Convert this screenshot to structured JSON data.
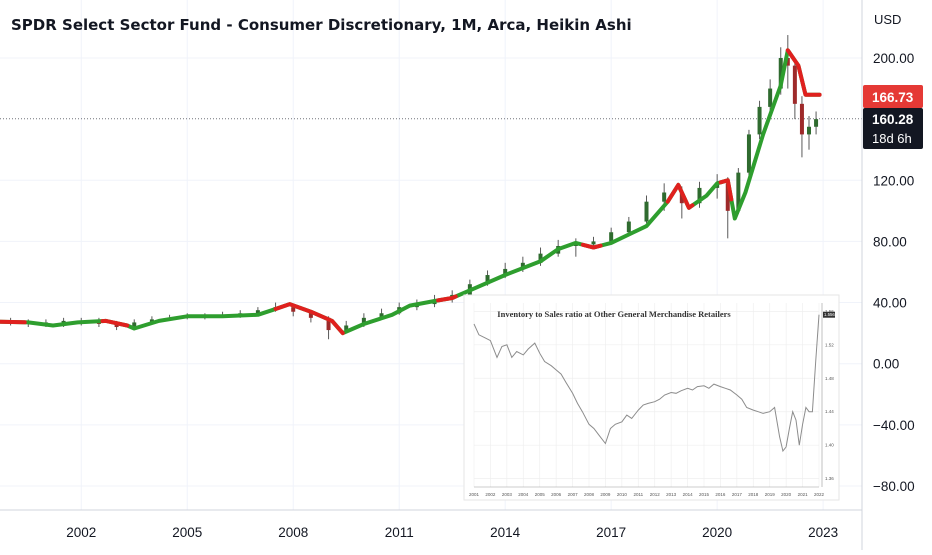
{
  "chart_data": [
    {
      "type": "candlestick",
      "title": "SPDR Select Sector Fund - Consumer Discretionary, 1M, Arca, Heikin Ashi",
      "currency": "USD",
      "yaxis_ticks": [
        "200.00",
        "120.00",
        "80.00",
        "40.00",
        "0.00",
        "−40.00",
        "−80.00"
      ],
      "ytick_values": [
        200,
        120,
        80,
        40,
        0,
        -40,
        -80
      ],
      "xaxis_ticks": [
        "2002",
        "2005",
        "2008",
        "2011",
        "2014",
        "2017",
        "2020",
        "2023"
      ],
      "xtick_values": [
        2002,
        2005,
        2008,
        2011,
        2014,
        2017,
        2020,
        2023
      ],
      "y_range": [
        -90,
        225
      ],
      "x_range": [
        1999.7,
        2024.1
      ],
      "price_labels": [
        {
          "text": "166.73",
          "value": 166.73,
          "color": "#e53935"
        },
        {
          "text": "160.28",
          "value": 160.28,
          "color": "#131722"
        },
        {
          "text": "18d 6h",
          "color": "#131722"
        }
      ],
      "dotted_price_line": 160.28,
      "trend_line": {
        "up_color": "#2e9e2e",
        "down_color": "#e0201e",
        "points": [
          [
            1999.7,
            27.5
          ],
          [
            2000.5,
            27
          ],
          [
            2001.2,
            25
          ],
          [
            2001.9,
            27
          ],
          [
            2002.7,
            28
          ],
          [
            2003.3,
            25
          ],
          [
            2003.5,
            23
          ],
          [
            2004.2,
            28
          ],
          [
            2005.0,
            31
          ],
          [
            2006.0,
            31
          ],
          [
            2007.0,
            32
          ],
          [
            2007.4,
            35
          ],
          [
            2007.9,
            39
          ],
          [
            2008.5,
            34
          ],
          [
            2009.1,
            28
          ],
          [
            2009.4,
            20
          ],
          [
            2010.0,
            26
          ],
          [
            2010.8,
            32
          ],
          [
            2011.3,
            38
          ],
          [
            2012.0,
            41
          ],
          [
            2012.5,
            43
          ],
          [
            2013.2,
            50
          ],
          [
            2014.0,
            58
          ],
          [
            2015.0,
            67
          ],
          [
            2015.5,
            75
          ],
          [
            2016.0,
            79
          ],
          [
            2016.5,
            76
          ],
          [
            2017.0,
            79
          ],
          [
            2018.0,
            90
          ],
          [
            2018.6,
            106
          ],
          [
            2018.9,
            117
          ],
          [
            2019.2,
            102
          ],
          [
            2019.7,
            110
          ],
          [
            2020.0,
            118
          ],
          [
            2020.3,
            120
          ],
          [
            2020.5,
            95
          ],
          [
            2020.8,
            112
          ],
          [
            2021.3,
            150
          ],
          [
            2021.8,
            182
          ],
          [
            2022.0,
            205
          ],
          [
            2022.3,
            195
          ],
          [
            2022.5,
            176
          ],
          [
            2022.9,
            176
          ]
        ],
        "down_segments": [
          [
            1999.7,
            2000.4
          ],
          [
            2002.6,
            2003.3
          ],
          [
            2007.5,
            2009.4
          ],
          [
            2012.1,
            2012.6
          ],
          [
            2016.2,
            2016.7
          ],
          [
            2018.6,
            2019.3
          ],
          [
            2020.1,
            2020.4
          ],
          [
            2022.0,
            2022.9
          ]
        ]
      },
      "candles": [
        {
          "x": 2000.0,
          "o": 28,
          "c": 27,
          "h": 30,
          "l": 25
        },
        {
          "x": 2000.5,
          "o": 27,
          "c": 26,
          "h": 29,
          "l": 24
        },
        {
          "x": 2001.0,
          "o": 26,
          "c": 27,
          "h": 29,
          "l": 24
        },
        {
          "x": 2001.5,
          "o": 26,
          "c": 28,
          "h": 30,
          "l": 24
        },
        {
          "x": 2002.0,
          "o": 27,
          "c": 28,
          "h": 30,
          "l": 25
        },
        {
          "x": 2002.5,
          "o": 28,
          "c": 26,
          "h": 30,
          "l": 24
        },
        {
          "x": 2003.0,
          "o": 26,
          "c": 24,
          "h": 28,
          "l": 22
        },
        {
          "x": 2003.5,
          "o": 24,
          "c": 27,
          "h": 29,
          "l": 22
        },
        {
          "x": 2004.0,
          "o": 27,
          "c": 29,
          "h": 31,
          "l": 26
        },
        {
          "x": 2004.5,
          "o": 29,
          "c": 30,
          "h": 32,
          "l": 28
        },
        {
          "x": 2005.0,
          "o": 30,
          "c": 31,
          "h": 33,
          "l": 29
        },
        {
          "x": 2005.5,
          "o": 31,
          "c": 31,
          "h": 33,
          "l": 29
        },
        {
          "x": 2006.0,
          "o": 31,
          "c": 32,
          "h": 34,
          "l": 30
        },
        {
          "x": 2006.5,
          "o": 31,
          "c": 33,
          "h": 35,
          "l": 30
        },
        {
          "x": 2007.0,
          "o": 33,
          "c": 35,
          "h": 37,
          "l": 32
        },
        {
          "x": 2007.5,
          "o": 35,
          "c": 37,
          "h": 40,
          "l": 34
        },
        {
          "x": 2008.0,
          "o": 37,
          "c": 34,
          "h": 38,
          "l": 31
        },
        {
          "x": 2008.5,
          "o": 34,
          "c": 30,
          "h": 35,
          "l": 27
        },
        {
          "x": 2009.0,
          "o": 30,
          "c": 22,
          "h": 31,
          "l": 16
        },
        {
          "x": 2009.5,
          "o": 22,
          "c": 25,
          "h": 28,
          "l": 20
        },
        {
          "x": 2010.0,
          "o": 25,
          "c": 30,
          "h": 33,
          "l": 24
        },
        {
          "x": 2010.5,
          "o": 30,
          "c": 33,
          "h": 36,
          "l": 29
        },
        {
          "x": 2011.0,
          "o": 33,
          "c": 37,
          "h": 40,
          "l": 32
        },
        {
          "x": 2011.5,
          "o": 37,
          "c": 39,
          "h": 42,
          "l": 35
        },
        {
          "x": 2012.0,
          "o": 39,
          "c": 42,
          "h": 45,
          "l": 37
        },
        {
          "x": 2012.5,
          "o": 42,
          "c": 45,
          "h": 48,
          "l": 40
        },
        {
          "x": 2013.0,
          "o": 45,
          "c": 52,
          "h": 55,
          "l": 44
        },
        {
          "x": 2013.5,
          "o": 52,
          "c": 58,
          "h": 61,
          "l": 51
        },
        {
          "x": 2014.0,
          "o": 58,
          "c": 62,
          "h": 66,
          "l": 56
        },
        {
          "x": 2014.5,
          "o": 62,
          "c": 66,
          "h": 70,
          "l": 60
        },
        {
          "x": 2015.0,
          "o": 66,
          "c": 72,
          "h": 76,
          "l": 64
        },
        {
          "x": 2015.5,
          "o": 72,
          "c": 77,
          "h": 81,
          "l": 70
        },
        {
          "x": 2016.0,
          "o": 77,
          "c": 78,
          "h": 82,
          "l": 70
        },
        {
          "x": 2016.5,
          "o": 78,
          "c": 80,
          "h": 83,
          "l": 75
        },
        {
          "x": 2017.0,
          "o": 80,
          "c": 86,
          "h": 89,
          "l": 79
        },
        {
          "x": 2017.5,
          "o": 86,
          "c": 93,
          "h": 96,
          "l": 85
        },
        {
          "x": 2018.0,
          "o": 93,
          "c": 106,
          "h": 110,
          "l": 92
        },
        {
          "x": 2018.5,
          "o": 106,
          "c": 112,
          "h": 118,
          "l": 100
        },
        {
          "x": 2019.0,
          "o": 112,
          "c": 105,
          "h": 116,
          "l": 95
        },
        {
          "x": 2019.5,
          "o": 105,
          "c": 115,
          "h": 119,
          "l": 102
        },
        {
          "x": 2020.0,
          "o": 115,
          "c": 118,
          "h": 124,
          "l": 108
        },
        {
          "x": 2020.3,
          "o": 118,
          "c": 100,
          "h": 122,
          "l": 82
        },
        {
          "x": 2020.6,
          "o": 100,
          "c": 125,
          "h": 128,
          "l": 98
        },
        {
          "x": 2020.9,
          "o": 125,
          "c": 150,
          "h": 153,
          "l": 123
        },
        {
          "x": 2021.2,
          "o": 150,
          "c": 168,
          "h": 172,
          "l": 147
        },
        {
          "x": 2021.5,
          "o": 168,
          "c": 180,
          "h": 186,
          "l": 165
        },
        {
          "x": 2021.8,
          "o": 180,
          "c": 200,
          "h": 207,
          "l": 176
        },
        {
          "x": 2022.0,
          "o": 200,
          "c": 195,
          "h": 215,
          "l": 180
        },
        {
          "x": 2022.2,
          "o": 195,
          "c": 170,
          "h": 200,
          "l": 160
        },
        {
          "x": 2022.4,
          "o": 170,
          "c": 150,
          "h": 175,
          "l": 135
        },
        {
          "x": 2022.6,
          "o": 150,
          "c": 155,
          "h": 162,
          "l": 140
        },
        {
          "x": 2022.8,
          "o": 155,
          "c": 160,
          "h": 165,
          "l": 150
        }
      ]
    },
    {
      "type": "line",
      "title": "Inventory to Sales ratio at Other General Merchandise Retailers",
      "line_color": "#8c8c8c",
      "x_range": [
        2001,
        2022
      ],
      "y_range": [
        1.35,
        1.57
      ],
      "x_ticks": [
        "2001",
        "2002",
        "2003",
        "2004",
        "2005",
        "2006",
        "2007",
        "2008",
        "2009",
        "2010",
        "2011",
        "2012",
        "2013",
        "2014",
        "2015",
        "2016",
        "2017",
        "2018",
        "2019",
        "2020",
        "2021",
        "2022"
      ],
      "y_ticks": [
        "1.56",
        "1.52",
        "1.48",
        "1.44",
        "1.40",
        "1.36"
      ],
      "ytick_values": [
        1.56,
        1.52,
        1.48,
        1.44,
        1.4,
        1.36
      ],
      "last_value_label": "1.5566",
      "x": [
        2001.0,
        2001.3,
        2001.7,
        2002.0,
        2002.4,
        2002.7,
        2003.0,
        2003.3,
        2003.6,
        2004.0,
        2004.3,
        2004.7,
        2005.0,
        2005.3,
        2005.7,
        2006.0,
        2006.3,
        2006.6,
        2007.0,
        2007.3,
        2007.6,
        2008.0,
        2008.3,
        2008.6,
        2009.0,
        2009.3,
        2009.6,
        2010.0,
        2010.3,
        2010.6,
        2011.0,
        2011.3,
        2011.6,
        2012.0,
        2012.3,
        2012.6,
        2013.0,
        2013.3,
        2013.6,
        2014.0,
        2014.3,
        2014.6,
        2015.0,
        2015.3,
        2015.6,
        2016.0,
        2016.3,
        2016.6,
        2017.0,
        2017.3,
        2017.6,
        2018.0,
        2018.3,
        2018.6,
        2019.0,
        2019.3,
        2019.6,
        2019.8,
        2020.0,
        2020.2,
        2020.4,
        2020.6,
        2020.8,
        2021.0,
        2021.2,
        2021.4,
        2021.6,
        2021.8,
        2022.0
      ],
      "values": [
        1.545,
        1.532,
        1.528,
        1.525,
        1.505,
        1.518,
        1.52,
        1.505,
        1.512,
        1.508,
        1.515,
        1.522,
        1.51,
        1.5,
        1.495,
        1.49,
        1.485,
        1.475,
        1.462,
        1.45,
        1.44,
        1.425,
        1.42,
        1.412,
        1.402,
        1.42,
        1.425,
        1.428,
        1.436,
        1.432,
        1.442,
        1.448,
        1.45,
        1.452,
        1.455,
        1.46,
        1.463,
        1.462,
        1.465,
        1.468,
        1.466,
        1.47,
        1.471,
        1.468,
        1.473,
        1.47,
        1.468,
        1.466,
        1.46,
        1.455,
        1.445,
        1.442,
        1.44,
        1.438,
        1.44,
        1.445,
        1.41,
        1.393,
        1.398,
        1.42,
        1.44,
        1.43,
        1.4,
        1.425,
        1.445,
        1.44,
        1.44,
        1.5,
        1.556
      ]
    }
  ]
}
